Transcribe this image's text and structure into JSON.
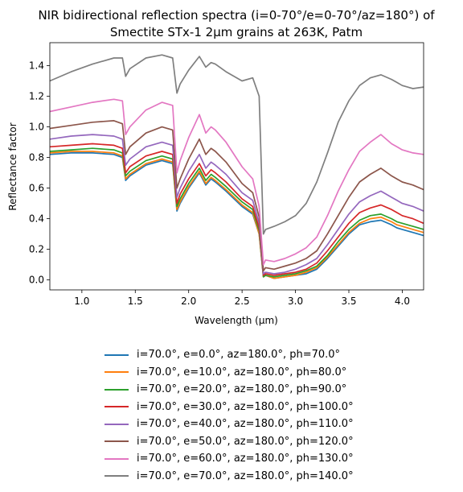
{
  "chart_data": {
    "type": "line",
    "title": "NIR bidirectional reflection spectra (i=0-70°/e=0-70°/az=180°) of",
    "subtitle": "Smectite STx-1 2µm grains at 263K, Patm",
    "xlabel": "Wavelength (μm)",
    "ylabel": "Reflectance factor",
    "xlim": [
      0.7,
      4.2
    ],
    "ylim": [
      -0.065,
      1.55
    ],
    "xticks": [
      1.0,
      1.5,
      2.0,
      2.5,
      3.0,
      3.5,
      4.0
    ],
    "xtick_labels": [
      "1.0",
      "1.5",
      "2.0",
      "2.5",
      "3.0",
      "3.5",
      "4.0"
    ],
    "yticks": [
      0.0,
      0.2,
      0.4,
      0.6,
      0.8,
      1.0,
      1.2,
      1.4
    ],
    "ytick_labels": [
      "0.0",
      "0.2",
      "0.4",
      "0.6",
      "0.8",
      "1.0",
      "1.2",
      "1.4"
    ],
    "grid": false,
    "legend_position": "below",
    "x": [
      0.7,
      0.9,
      1.1,
      1.3,
      1.38,
      1.41,
      1.45,
      1.6,
      1.75,
      1.85,
      1.89,
      1.92,
      2.0,
      2.1,
      2.16,
      2.21,
      2.25,
      2.35,
      2.5,
      2.6,
      2.66,
      2.7,
      2.72,
      2.8,
      2.9,
      3.0,
      3.1,
      3.2,
      3.3,
      3.4,
      3.5,
      3.6,
      3.7,
      3.8,
      3.9,
      3.95,
      4.0,
      4.1,
      4.2
    ],
    "series": [
      {
        "name": "i=70.0°, e=0.0°, az=180.0°, ph=70.0°",
        "color": "#1f77b4",
        "values": [
          0.82,
          0.83,
          0.83,
          0.82,
          0.8,
          0.65,
          0.68,
          0.75,
          0.78,
          0.76,
          0.45,
          0.5,
          0.6,
          0.7,
          0.62,
          0.66,
          0.64,
          0.58,
          0.48,
          0.43,
          0.3,
          0.02,
          0.03,
          0.01,
          0.02,
          0.03,
          0.04,
          0.07,
          0.14,
          0.22,
          0.3,
          0.36,
          0.38,
          0.39,
          0.36,
          0.34,
          0.33,
          0.31,
          0.29
        ]
      },
      {
        "name": "i=70.0°, e=10.0°, az=180.0°, ph=80.0°",
        "color": "#ff7f0e",
        "values": [
          0.83,
          0.84,
          0.84,
          0.83,
          0.81,
          0.66,
          0.69,
          0.76,
          0.79,
          0.77,
          0.46,
          0.51,
          0.61,
          0.71,
          0.63,
          0.67,
          0.65,
          0.59,
          0.49,
          0.44,
          0.3,
          0.02,
          0.03,
          0.01,
          0.02,
          0.03,
          0.05,
          0.08,
          0.15,
          0.23,
          0.31,
          0.37,
          0.4,
          0.41,
          0.38,
          0.36,
          0.35,
          0.33,
          0.31
        ]
      },
      {
        "name": "i=70.0°, e=20.0°, az=180.0°, ph=90.0°",
        "color": "#2ca02c",
        "values": [
          0.84,
          0.85,
          0.86,
          0.85,
          0.83,
          0.68,
          0.71,
          0.78,
          0.81,
          0.79,
          0.48,
          0.53,
          0.63,
          0.73,
          0.65,
          0.69,
          0.67,
          0.61,
          0.51,
          0.46,
          0.32,
          0.02,
          0.03,
          0.02,
          0.03,
          0.04,
          0.06,
          0.09,
          0.16,
          0.25,
          0.33,
          0.39,
          0.42,
          0.43,
          0.4,
          0.38,
          0.37,
          0.35,
          0.33
        ]
      },
      {
        "name": "i=70.0°, e=30.0°, az=180.0°, ph=100.0°",
        "color": "#d62728",
        "values": [
          0.87,
          0.88,
          0.89,
          0.88,
          0.86,
          0.7,
          0.74,
          0.81,
          0.84,
          0.82,
          0.5,
          0.56,
          0.66,
          0.76,
          0.68,
          0.72,
          0.7,
          0.64,
          0.53,
          0.48,
          0.34,
          0.03,
          0.04,
          0.03,
          0.04,
          0.05,
          0.07,
          0.11,
          0.19,
          0.28,
          0.37,
          0.44,
          0.47,
          0.49,
          0.46,
          0.44,
          0.42,
          0.4,
          0.37
        ]
      },
      {
        "name": "i=70.0°, e=40.0°, az=180.0°, ph=110.0°",
        "color": "#9467bd",
        "values": [
          0.92,
          0.94,
          0.95,
          0.94,
          0.92,
          0.75,
          0.79,
          0.87,
          0.9,
          0.88,
          0.54,
          0.6,
          0.71,
          0.82,
          0.73,
          0.77,
          0.75,
          0.69,
          0.57,
          0.52,
          0.37,
          0.04,
          0.05,
          0.04,
          0.05,
          0.07,
          0.1,
          0.14,
          0.23,
          0.33,
          0.43,
          0.51,
          0.55,
          0.58,
          0.54,
          0.52,
          0.5,
          0.48,
          0.45
        ]
      },
      {
        "name": "i=70.0°, e=50.0°, az=180.0°, ph=120.0°",
        "color": "#8c564b",
        "values": [
          0.99,
          1.01,
          1.03,
          1.04,
          1.02,
          0.82,
          0.87,
          0.96,
          1.0,
          0.98,
          0.6,
          0.66,
          0.79,
          0.92,
          0.82,
          0.86,
          0.84,
          0.77,
          0.63,
          0.57,
          0.41,
          0.06,
          0.08,
          0.07,
          0.09,
          0.11,
          0.14,
          0.19,
          0.3,
          0.42,
          0.54,
          0.64,
          0.69,
          0.73,
          0.68,
          0.66,
          0.64,
          0.62,
          0.59
        ]
      },
      {
        "name": "i=70.0°, e=60.0°, az=180.0°, ph=130.0°",
        "color": "#e377c2",
        "values": [
          1.1,
          1.13,
          1.16,
          1.18,
          1.17,
          0.95,
          1.0,
          1.11,
          1.16,
          1.14,
          0.7,
          0.78,
          0.93,
          1.08,
          0.96,
          1.0,
          0.98,
          0.9,
          0.74,
          0.66,
          0.48,
          0.1,
          0.13,
          0.12,
          0.14,
          0.17,
          0.21,
          0.28,
          0.42,
          0.58,
          0.72,
          0.84,
          0.9,
          0.95,
          0.89,
          0.87,
          0.85,
          0.83,
          0.82
        ]
      },
      {
        "name": "i=70.0°, e=70.0°, az=180.0°, ph=140.0°",
        "color": "#7f7f7f",
        "values": [
          1.3,
          1.36,
          1.41,
          1.45,
          1.45,
          1.33,
          1.38,
          1.45,
          1.47,
          1.45,
          1.22,
          1.28,
          1.37,
          1.46,
          1.39,
          1.42,
          1.41,
          1.36,
          1.3,
          1.32,
          1.2,
          0.3,
          0.33,
          0.35,
          0.38,
          0.42,
          0.5,
          0.64,
          0.83,
          1.03,
          1.17,
          1.27,
          1.32,
          1.34,
          1.31,
          1.29,
          1.27,
          1.25,
          1.26
        ]
      }
    ]
  }
}
